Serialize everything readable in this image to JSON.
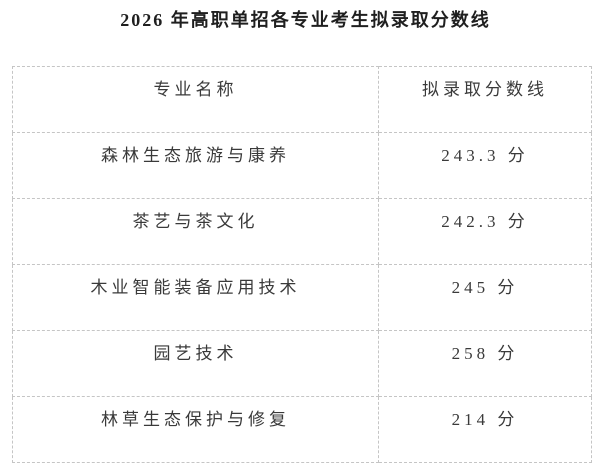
{
  "title": "2026 年高职单招各专业考生拟录取分数线",
  "table": {
    "columns": [
      "专业名称",
      "拟录取分数线"
    ],
    "rows": [
      {
        "major": "森林生态旅游与康养",
        "score": "243.3 分"
      },
      {
        "major": "茶艺与茶文化",
        "score": "242.3 分"
      },
      {
        "major": "木业智能装备应用技术",
        "score": "245 分"
      },
      {
        "major": "园艺技术",
        "score": "258 分"
      },
      {
        "major": "林草生态保护与修复",
        "score": "214 分"
      }
    ]
  },
  "colors": {
    "border": "#c5c5c5",
    "text": "#3a3a3a",
    "title_text": "#1f1f1f",
    "background": "#ffffff"
  }
}
